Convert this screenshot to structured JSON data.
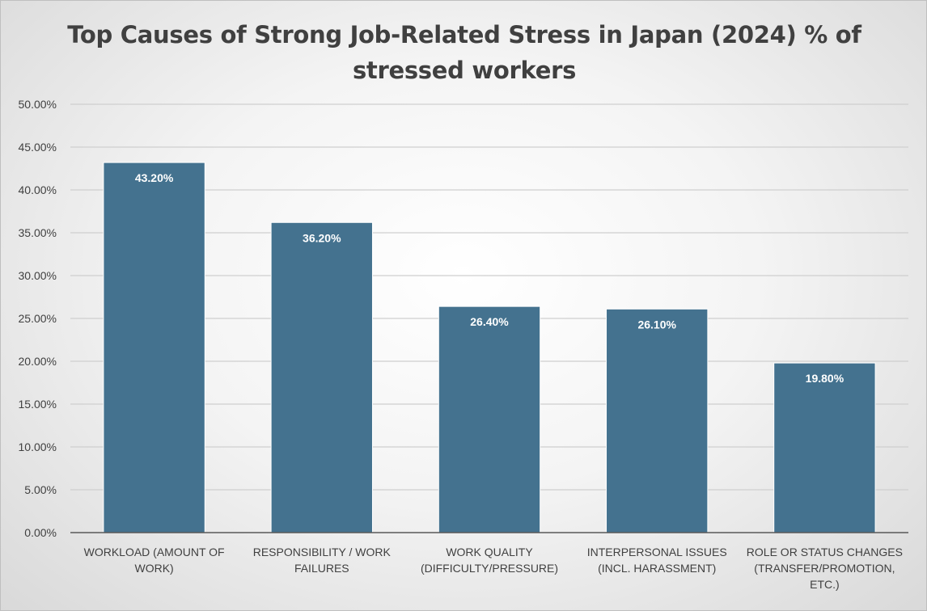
{
  "chart_data": {
    "type": "bar",
    "title": "Top Causes of Strong Job-Related Stress in Japan (2024) % of stressed workers",
    "xlabel": "",
    "ylabel": "",
    "categories": [
      [
        "WORKLOAD (AMOUNT OF",
        "WORK)"
      ],
      [
        "RESPONSIBILITY / WORK",
        "FAILURES"
      ],
      [
        "WORK QUALITY",
        "(DIFFICULTY/PRESSURE)"
      ],
      [
        "INTERPERSONAL ISSUES",
        "(INCL. HARASSMENT)"
      ],
      [
        "ROLE OR STATUS CHANGES",
        "(TRANSFER/PROMOTION,",
        "ETC.)"
      ]
    ],
    "values": [
      43.2,
      36.2,
      26.4,
      26.1,
      19.8
    ],
    "data_labels": [
      "43.20%",
      "36.20%",
      "26.40%",
      "26.10%",
      "19.80%"
    ],
    "ylim": [
      0,
      50
    ],
    "y_ticks": [
      "0.00%",
      "5.00%",
      "10.00%",
      "15.00%",
      "20.00%",
      "25.00%",
      "30.00%",
      "35.00%",
      "40.00%",
      "45.00%",
      "50.00%"
    ],
    "grid": true,
    "legend": "none",
    "colors": {
      "bar": "#44728f",
      "bar_border": "#ffffff",
      "grid": "#cfcfcf",
      "axis": "#595959",
      "label": "#404040"
    }
  }
}
